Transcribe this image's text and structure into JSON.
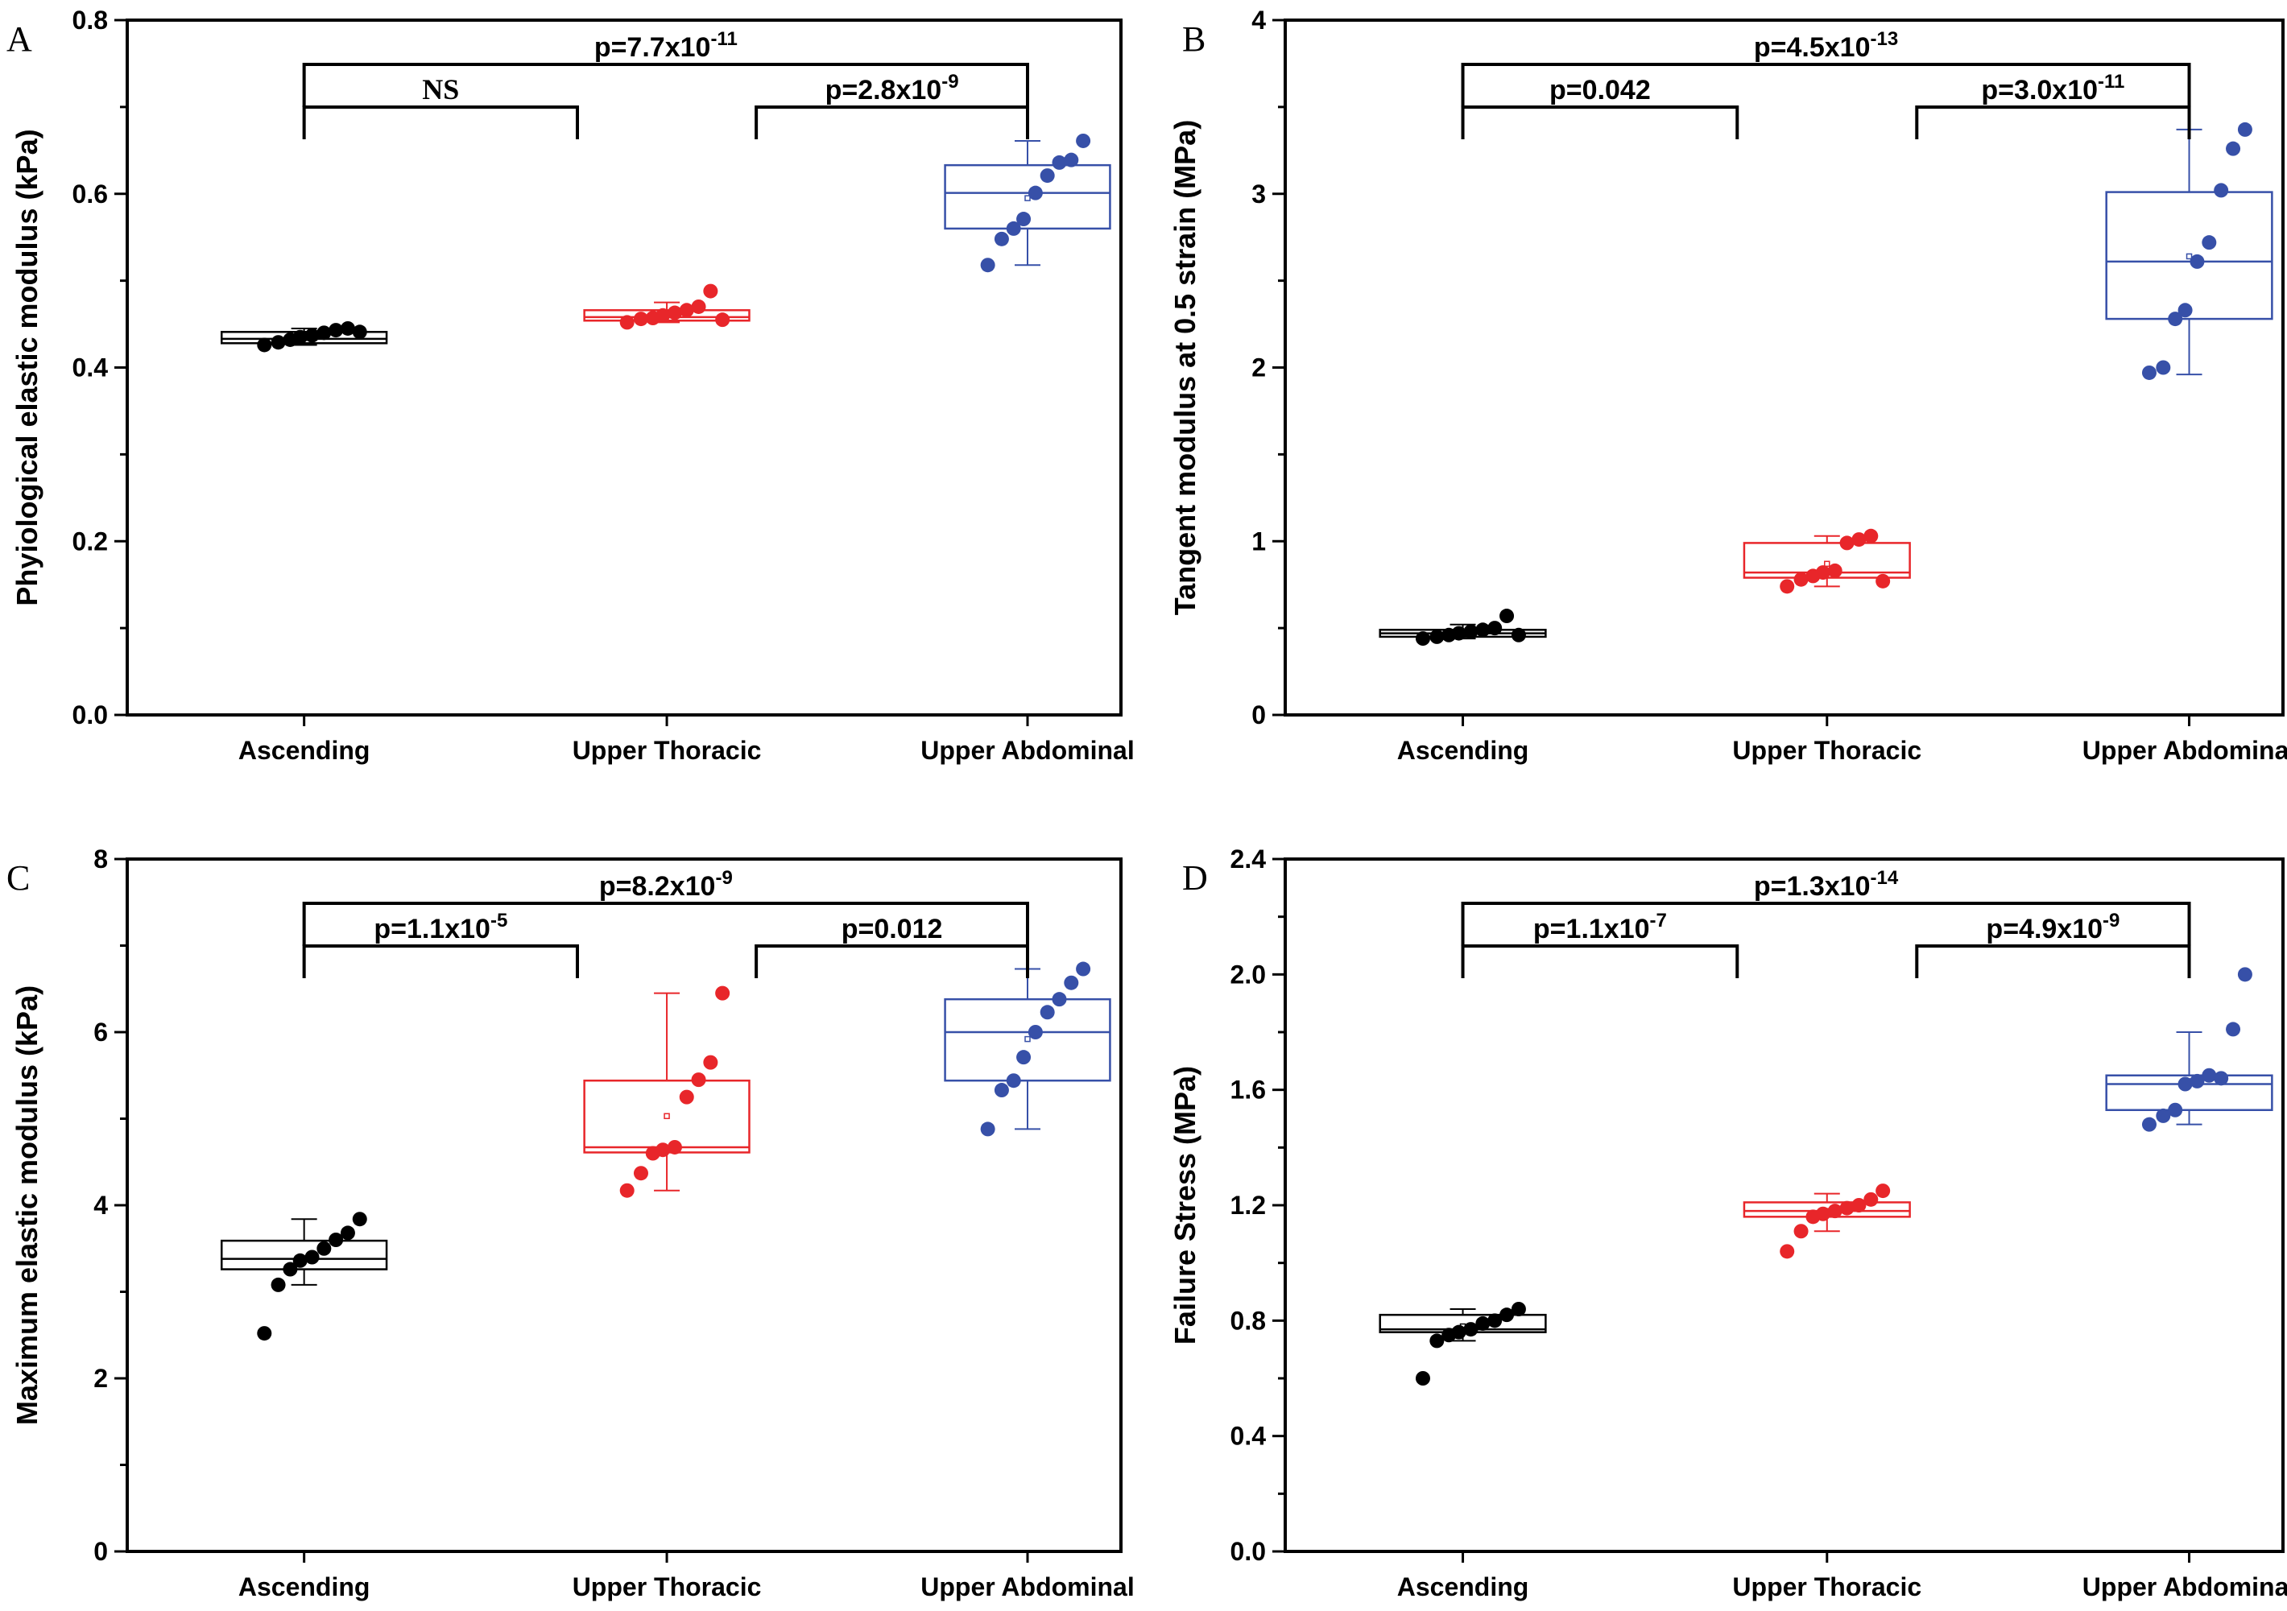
{
  "chart_data": [
    {
      "panel": "A",
      "type": "box",
      "ylabel": "Phyiological elastic modulus (kPa)",
      "ylim": [
        0,
        0.8
      ],
      "yticks": [
        0.0,
        0.2,
        0.4,
        0.6,
        0.8
      ],
      "ytick_labels": [
        "0.0",
        "0.2",
        "0.4",
        "0.6",
        "0.8"
      ],
      "categories": [
        "Ascending",
        "Upper Thoracic",
        "Upper Abdominal"
      ],
      "groups": [
        {
          "name": "Ascending",
          "color": "#000000",
          "box": {
            "q1": 0.428,
            "median": 0.433,
            "q3": 0.441,
            "mean": 0.434,
            "whisker_low": 0.426,
            "whisker_high": 0.445
          },
          "points": [
            0.426,
            0.429,
            0.432,
            0.435,
            0.437,
            0.44,
            0.443,
            0.445,
            0.441
          ]
        },
        {
          "name": "Upper Thoracic",
          "color": "#e8262a",
          "box": {
            "q1": 0.454,
            "median": 0.458,
            "q3": 0.466,
            "mean": 0.462,
            "whisker_low": 0.452,
            "whisker_high": 0.475
          },
          "points": [
            0.452,
            0.456,
            0.457,
            0.46,
            0.463,
            0.466,
            0.47,
            0.488,
            0.455
          ]
        },
        {
          "name": "Upper Abdominal",
          "color": "#3750a8",
          "box": {
            "q1": 0.56,
            "median": 0.601,
            "q3": 0.633,
            "mean": 0.595,
            "whisker_low": 0.518,
            "whisker_high": 0.661
          },
          "points": [
            0.518,
            0.548,
            0.56,
            0.571,
            0.601,
            0.621,
            0.636,
            0.639,
            0.661
          ]
        }
      ],
      "comparisons": [
        {
          "label": "p=7.7x10",
          "exp": "-11",
          "from": 0,
          "to": 2,
          "level": 2
        },
        {
          "label": "NS",
          "exp": "",
          "from": 0,
          "to": 1,
          "level": 1
        },
        {
          "label": "p=2.8x10",
          "exp": "-9",
          "from": 1,
          "to": 2,
          "level": 1
        }
      ]
    },
    {
      "panel": "B",
      "type": "box",
      "ylabel": "Tangent modulus at 0.5 strain (MPa)",
      "ylim": [
        0,
        4
      ],
      "yticks": [
        0,
        1,
        2,
        3,
        4
      ],
      "ytick_labels": [
        "0",
        "1",
        "2",
        "3",
        "4"
      ],
      "categories": [
        "Ascending",
        "Upper Thoracic",
        "Upper Abdominal"
      ],
      "groups": [
        {
          "name": "Ascending",
          "color": "#000000",
          "box": {
            "q1": 0.45,
            "median": 0.47,
            "q3": 0.49,
            "mean": 0.47,
            "whisker_low": 0.44,
            "whisker_high": 0.52
          },
          "points": [
            0.44,
            0.45,
            0.46,
            0.47,
            0.48,
            0.49,
            0.5,
            0.57,
            0.46
          ]
        },
        {
          "name": "Upper Thoracic",
          "color": "#e8262a",
          "box": {
            "q1": 0.79,
            "median": 0.82,
            "q3": 0.99,
            "mean": 0.87,
            "whisker_low": 0.74,
            "whisker_high": 1.03
          },
          "points": [
            0.74,
            0.78,
            0.8,
            0.82,
            0.83,
            0.99,
            1.01,
            1.03,
            0.77
          ]
        },
        {
          "name": "Upper Abdominal",
          "color": "#3750a8",
          "box": {
            "q1": 2.28,
            "median": 2.61,
            "q3": 3.01,
            "mean": 2.64,
            "whisker_low": 1.96,
            "whisker_high": 3.37
          },
          "points": [
            1.97,
            2.0,
            2.28,
            2.33,
            2.61,
            2.72,
            3.02,
            3.26,
            3.37
          ]
        }
      ],
      "comparisons": [
        {
          "label": "p=4.5x10",
          "exp": "-13",
          "from": 0,
          "to": 2,
          "level": 2
        },
        {
          "label": "p=0.042",
          "exp": "",
          "from": 0,
          "to": 1,
          "level": 1
        },
        {
          "label": "p=3.0x10",
          "exp": "-11",
          "from": 1,
          "to": 2,
          "level": 1
        }
      ]
    },
    {
      "panel": "C",
      "type": "box",
      "ylabel": "Maximum elastic modulus (kPa)",
      "ylim": [
        0,
        8
      ],
      "yticks": [
        0,
        2,
        4,
        6,
        8
      ],
      "ytick_labels": [
        "0",
        "2",
        "4",
        "6",
        "8"
      ],
      "categories": [
        "Ascending",
        "Upper Thoracic",
        "Upper Abdominal"
      ],
      "groups": [
        {
          "name": "Ascending",
          "color": "#000000",
          "box": {
            "q1": 3.26,
            "median": 3.38,
            "q3": 3.59,
            "mean": 3.38,
            "whisker_low": 3.08,
            "whisker_high": 3.84
          },
          "points": [
            2.52,
            3.08,
            3.26,
            3.36,
            3.4,
            3.5,
            3.6,
            3.68,
            3.84
          ]
        },
        {
          "name": "Upper Thoracic",
          "color": "#e8262a",
          "box": {
            "q1": 4.61,
            "median": 4.67,
            "q3": 5.44,
            "mean": 5.03,
            "whisker_low": 4.17,
            "whisker_high": 6.45
          },
          "points": [
            4.17,
            4.37,
            4.6,
            4.64,
            4.67,
            5.25,
            5.45,
            5.65,
            6.45
          ]
        },
        {
          "name": "Upper Abdominal",
          "color": "#3750a8",
          "box": {
            "q1": 5.44,
            "median": 6.0,
            "q3": 6.38,
            "mean": 5.92,
            "whisker_low": 4.88,
            "whisker_high": 6.73
          },
          "points": [
            4.88,
            5.33,
            5.44,
            5.71,
            6.0,
            6.23,
            6.38,
            6.57,
            6.73
          ]
        }
      ],
      "comparisons": [
        {
          "label": "p=8.2x10",
          "exp": "-9",
          "from": 0,
          "to": 2,
          "level": 2
        },
        {
          "label": "p=1.1x10",
          "exp": "-5",
          "from": 0,
          "to": 1,
          "level": 1
        },
        {
          "label": "p=0.012",
          "exp": "",
          "from": 1,
          "to": 2,
          "level": 1
        }
      ]
    },
    {
      "panel": "D",
      "type": "box",
      "ylabel": "Failure Stress (MPa)",
      "ylim": [
        0,
        2.4
      ],
      "yticks": [
        0.0,
        0.4,
        0.8,
        1.2,
        1.6,
        2.0,
        2.4
      ],
      "ytick_labels": [
        "0.0",
        "0.4",
        "0.8",
        "1.2",
        "1.6",
        "2.0",
        "2.4"
      ],
      "categories": [
        "Ascending",
        "Upper Thoracic",
        "Upper Abdominal"
      ],
      "groups": [
        {
          "name": "Ascending",
          "color": "#000000",
          "box": {
            "q1": 0.76,
            "median": 0.77,
            "q3": 0.82,
            "mean": 0.78,
            "whisker_low": 0.73,
            "whisker_high": 0.84
          },
          "points": [
            0.6,
            0.73,
            0.75,
            0.76,
            0.77,
            0.79,
            0.8,
            0.82,
            0.84
          ]
        },
        {
          "name": "Upper Thoracic",
          "color": "#e8262a",
          "box": {
            "q1": 1.16,
            "median": 1.18,
            "q3": 1.21,
            "mean": 1.18,
            "whisker_low": 1.11,
            "whisker_high": 1.24
          },
          "points": [
            1.04,
            1.11,
            1.16,
            1.17,
            1.18,
            1.19,
            1.2,
            1.22,
            1.25
          ]
        },
        {
          "name": "Upper Abdominal",
          "color": "#3750a8",
          "box": {
            "q1": 1.53,
            "median": 1.62,
            "q3": 1.65,
            "mean": 1.63,
            "whisker_low": 1.48,
            "whisker_high": 1.8
          },
          "points": [
            1.48,
            1.51,
            1.53,
            1.62,
            1.63,
            1.65,
            1.64,
            1.81,
            2.0
          ]
        }
      ],
      "comparisons": [
        {
          "label": "p=1.3x10",
          "exp": "-14",
          "from": 0,
          "to": 2,
          "level": 2
        },
        {
          "label": "p=1.1x10",
          "exp": "-7",
          "from": 0,
          "to": 1,
          "level": 1
        },
        {
          "label": "p=4.9x10",
          "exp": "-9",
          "from": 1,
          "to": 2,
          "level": 1
        }
      ]
    }
  ]
}
